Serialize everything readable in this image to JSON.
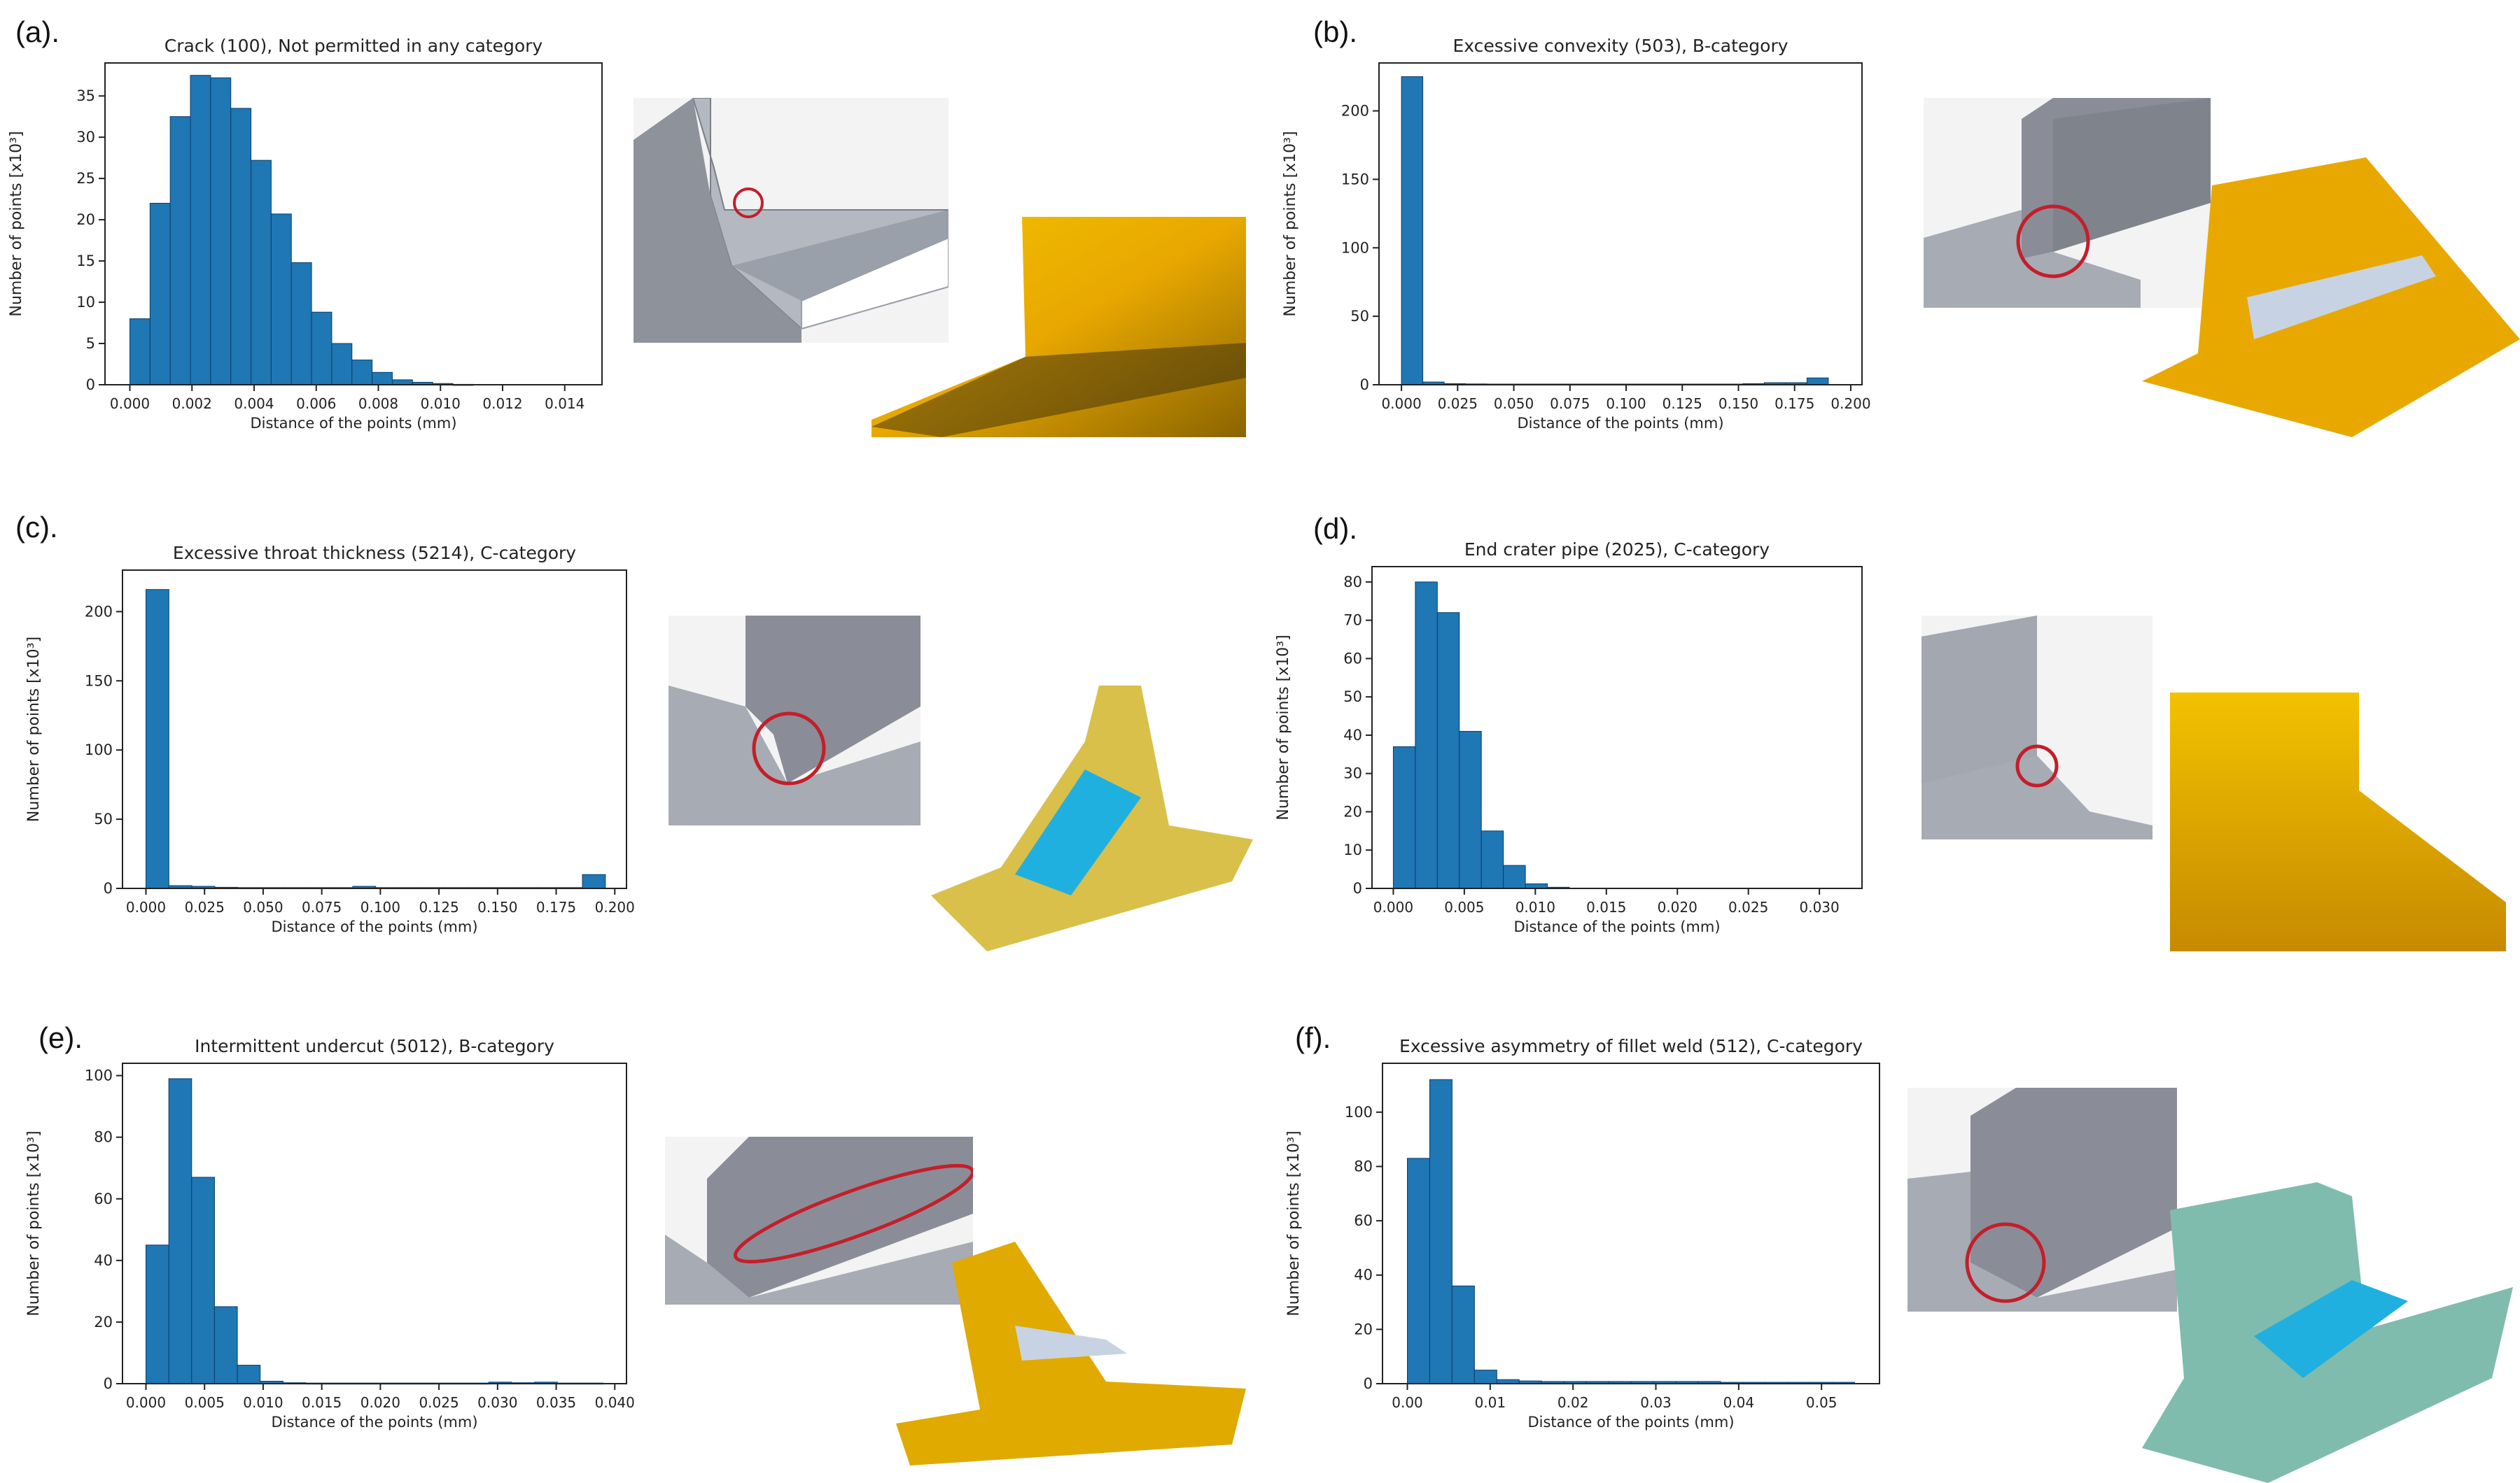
{
  "panels": [
    {
      "label": "(a)."
    },
    {
      "label": "(b)."
    },
    {
      "label": "(c)."
    },
    {
      "label": "(d)."
    },
    {
      "label": "(e)."
    },
    {
      "label": "(f)."
    }
  ],
  "colors": {
    "bar": "#1f77b4",
    "bar_edge": "#0c3e6b",
    "defect_marker": "#c41e2a",
    "scan_gold": "#e6a800",
    "scan_cyan": "#20b0e0",
    "cad_gray": "#a8adb8"
  },
  "chart_data": [
    {
      "type": "bar",
      "title": "Crack (100), Not permitted in any category",
      "xlabel": "Distance of the points (mm)",
      "ylabel": "Number of points [x10³]",
      "xlim": [
        -0.0008,
        0.0152
      ],
      "ylim": [
        0,
        39
      ],
      "xticks": [
        0,
        0.002,
        0.004,
        0.006,
        0.008,
        0.01,
        0.012,
        0.014
      ],
      "xtick_labels": [
        "0.000",
        "0.002",
        "0.004",
        "0.006",
        "0.008",
        "0.010",
        "0.012",
        "0.014"
      ],
      "yticks": [
        0,
        5,
        10,
        15,
        20,
        25,
        30,
        35
      ],
      "ytick_labels": [
        "0",
        "5",
        "10",
        "15",
        "20",
        "25",
        "30",
        "35"
      ],
      "bin_width": 0.00065,
      "bin_start": 0.0,
      "values": [
        8,
        22,
        32.5,
        37.5,
        37.2,
        33.5,
        27.2,
        20.7,
        14.8,
        8.8,
        5,
        3,
        1.5,
        0.6,
        0.3,
        0.15,
        0.05,
        0,
        0,
        0,
        0,
        0
      ]
    },
    {
      "type": "bar",
      "title": "Excessive convexity (503), B-category",
      "xlabel": "Distance of the points (mm)",
      "ylabel": "Number of points [x10³]",
      "xlim": [
        -0.01,
        0.205
      ],
      "ylim": [
        0,
        235
      ],
      "xticks": [
        0,
        0.025,
        0.05,
        0.075,
        0.1,
        0.125,
        0.15,
        0.175,
        0.2
      ],
      "xtick_labels": [
        "0.000",
        "0.025",
        "0.050",
        "0.075",
        "0.100",
        "0.125",
        "0.150",
        "0.175",
        "0.200"
      ],
      "yticks": [
        0,
        50,
        100,
        150,
        200
      ],
      "ytick_labels": [
        "0",
        "50",
        "100",
        "150",
        "200"
      ],
      "bin_width": 0.0095,
      "bin_start": 0.0,
      "values": [
        225,
        2,
        0.8,
        0.6,
        0.5,
        0.5,
        0.5,
        0.5,
        0.5,
        0.5,
        0.5,
        0.5,
        0.5,
        0.5,
        0.5,
        0.5,
        0.8,
        1.5,
        1.5,
        5
      ]
    },
    {
      "type": "bar",
      "title": "Excessive throat thickness (5214), C-category",
      "xlabel": "Distance of the points (mm)",
      "ylabel": "Number of points [x10³]",
      "xlim": [
        -0.01,
        0.205
      ],
      "ylim": [
        0,
        230
      ],
      "xticks": [
        0,
        0.025,
        0.05,
        0.075,
        0.1,
        0.125,
        0.15,
        0.175,
        0.2
      ],
      "xtick_labels": [
        "0.000",
        "0.025",
        "0.050",
        "0.075",
        "0.100",
        "0.125",
        "0.150",
        "0.175",
        "0.200"
      ],
      "yticks": [
        0,
        50,
        100,
        150,
        200
      ],
      "ytick_labels": [
        "0",
        "50",
        "100",
        "150",
        "200"
      ],
      "bin_width": 0.0098,
      "bin_start": 0.0,
      "values": [
        216,
        2,
        1.5,
        0.8,
        0.6,
        0.6,
        0.6,
        0.6,
        0.6,
        1.5,
        0.6,
        0.6,
        0.6,
        0.6,
        0.6,
        0.6,
        0.6,
        0.6,
        0.6,
        10
      ]
    },
    {
      "type": "bar",
      "title": "End crater pipe (2025), C-category",
      "xlabel": "Distance of the points (mm)",
      "ylabel": "Number of points [x10³]",
      "xlim": [
        -0.0015,
        0.033
      ],
      "ylim": [
        0,
        84
      ],
      "xticks": [
        0,
        0.005,
        0.01,
        0.015,
        0.02,
        0.025,
        0.03
      ],
      "xtick_labels": [
        "0.000",
        "0.005",
        "0.010",
        "0.015",
        "0.020",
        "0.025",
        "0.030"
      ],
      "yticks": [
        0,
        10,
        20,
        30,
        40,
        50,
        60,
        70,
        80
      ],
      "ytick_labels": [
        "0",
        "10",
        "20",
        "30",
        "40",
        "50",
        "60",
        "70",
        "80"
      ],
      "bin_width": 0.00155,
      "bin_start": 0.0,
      "values": [
        37,
        80,
        72,
        41,
        15,
        6,
        1.2,
        0.3
      ]
    },
    {
      "type": "bar",
      "title": "Intermittent undercut (5012), B-category",
      "xlabel": "Distance of the points (mm)",
      "ylabel": "Number of points [x10³]",
      "xlim": [
        -0.002,
        0.041
      ],
      "ylim": [
        0,
        104
      ],
      "xticks": [
        0,
        0.005,
        0.01,
        0.015,
        0.02,
        0.025,
        0.03,
        0.035,
        0.04
      ],
      "xtick_labels": [
        "0.000",
        "0.005",
        "0.010",
        "0.015",
        "0.020",
        "0.025",
        "0.030",
        "0.035",
        "0.040"
      ],
      "yticks": [
        0,
        20,
        40,
        60,
        80,
        100
      ],
      "ytick_labels": [
        "0",
        "20",
        "40",
        "60",
        "80",
        "100"
      ],
      "bin_width": 0.00195,
      "bin_start": 0.0,
      "values": [
        45,
        99,
        67,
        25,
        6,
        0.8,
        0.3,
        0.2,
        0.2,
        0.2,
        0.2,
        0.2,
        0.2,
        0.2,
        0.2,
        0.5,
        0.3,
        0.5,
        0.2,
        0.2
      ]
    },
    {
      "type": "bar",
      "title": "Excessive asymmetry of fillet weld (512), C-category",
      "xlabel": "Distance of the points (mm)",
      "ylabel": "Number of points [x10³]",
      "xlim": [
        -0.003,
        0.057
      ],
      "ylim": [
        0,
        118
      ],
      "xticks": [
        0,
        0.01,
        0.02,
        0.03,
        0.04,
        0.05
      ],
      "xtick_labels": [
        "0.00",
        "0.01",
        "0.02",
        "0.03",
        "0.04",
        "0.05"
      ],
      "yticks": [
        0,
        20,
        40,
        60,
        80,
        100
      ],
      "ytick_labels": [
        "0",
        "20",
        "40",
        "60",
        "80",
        "100"
      ],
      "bin_width": 0.0027,
      "bin_start": 0.0,
      "values": [
        83,
        112,
        36,
        5,
        1.5,
        1,
        0.8,
        0.8,
        0.8,
        0.8,
        0.8,
        0.8,
        0.8,
        0.8,
        0.5,
        0.5,
        0.5,
        0.5,
        0.5,
        0.5
      ]
    }
  ]
}
